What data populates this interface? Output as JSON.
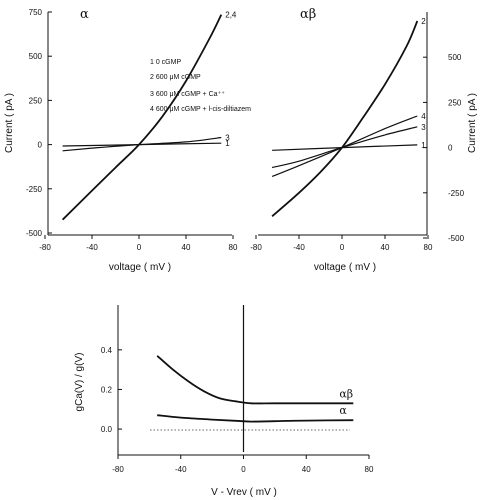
{
  "chart_data": [
    {
      "type": "line",
      "panel_label": "α",
      "ylabel": "Current ( pA )",
      "xlabel": "voltage ( mV )",
      "xlim": [
        -80,
        80
      ],
      "ylim": [
        -500,
        750
      ],
      "xticks": [
        "-80",
        "-40",
        "0",
        "40",
        "80"
      ],
      "yticks": [
        "750",
        "500",
        "250",
        "0",
        "-250",
        "-500"
      ],
      "legend": [
        "1  0 cGMP",
        "2  600 μM cGMP",
        "3  600 μM cGMP + Ca⁺⁺",
        "4  600 μM cGMP + l-cis-diltiazem"
      ],
      "series": [
        {
          "label": "1",
          "x": [
            -65,
            0,
            70
          ],
          "y": [
            -8,
            0,
            8
          ]
        },
        {
          "label": "3",
          "x": [
            -65,
            -40,
            0,
            40,
            70
          ],
          "y": [
            -35,
            -20,
            0,
            15,
            40
          ]
        },
        {
          "label": "2,4",
          "x": [
            -65,
            -40,
            -20,
            0,
            20,
            40,
            60,
            70
          ],
          "y": [
            -425,
            -260,
            -130,
            0,
            160,
            360,
            600,
            735
          ]
        }
      ]
    },
    {
      "type": "line",
      "panel_label": "αβ",
      "ylabel": "Current ( pA )",
      "xlabel": "voltage ( mV )",
      "xlim": [
        -80,
        80
      ],
      "ylim": [
        -500,
        750
      ],
      "xticks": [
        "-80",
        "-40",
        "0",
        "40",
        "80"
      ],
      "yticks": [
        "500",
        "250",
        "0",
        "-250",
        "-500"
      ],
      "series": [
        {
          "label": "1",
          "x": [
            -65,
            0,
            70
          ],
          "y": [
            -15,
            0,
            15
          ]
        },
        {
          "label": "3",
          "x": [
            -65,
            -40,
            0,
            40,
            70
          ],
          "y": [
            -110,
            -75,
            0,
            70,
            115
          ]
        },
        {
          "label": "4",
          "x": [
            -65,
            -40,
            0,
            40,
            70
          ],
          "y": [
            -160,
            -100,
            0,
            105,
            175
          ]
        },
        {
          "label": "2",
          "x": [
            -65,
            -40,
            -20,
            0,
            20,
            40,
            60,
            70
          ],
          "y": [
            -380,
            -250,
            -135,
            0,
            170,
            350,
            560,
            700
          ]
        }
      ]
    },
    {
      "type": "line",
      "ylabel": "gCa(V) / g(V)",
      "xlabel": "V - Vrev ( mV )",
      "xlim": [
        -80,
        80
      ],
      "ylim": [
        -0.05,
        0.5
      ],
      "xticks": [
        "-80",
        "-40",
        "0",
        "40",
        "80"
      ],
      "yticks": [
        "0.4",
        "0.2",
        "0.0"
      ],
      "series": [
        {
          "label": "αβ",
          "x": [
            -55,
            -45,
            -35,
            -25,
            -15,
            -5,
            5,
            20,
            40,
            70
          ],
          "y": [
            0.37,
            0.3,
            0.24,
            0.19,
            0.155,
            0.14,
            0.13,
            0.13,
            0.13,
            0.13
          ]
        },
        {
          "label": "α",
          "x": [
            -55,
            -40,
            -20,
            -5,
            5,
            20,
            40,
            70
          ],
          "y": [
            0.07,
            0.058,
            0.048,
            0.042,
            0.038,
            0.04,
            0.043,
            0.045
          ]
        }
      ]
    }
  ]
}
